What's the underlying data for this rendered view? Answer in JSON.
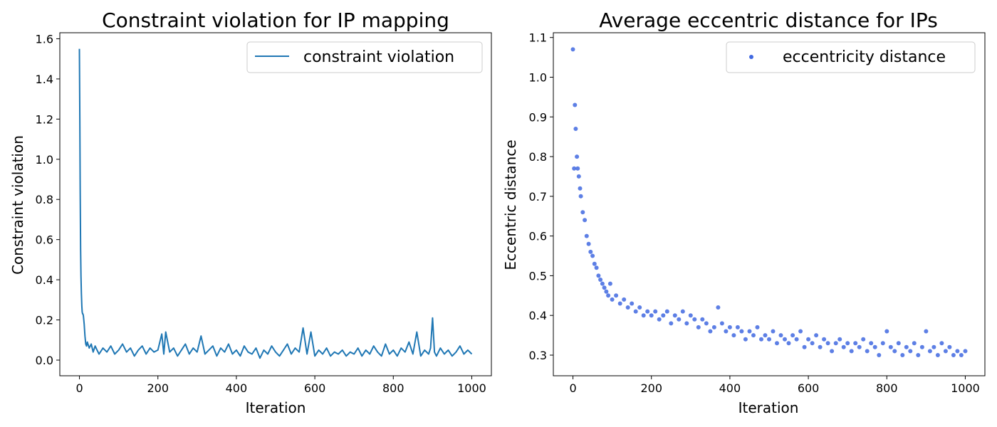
{
  "colors": {
    "line_series": "#1f77b4",
    "scatter_series": "#4169e1",
    "axes": "#000000",
    "legend_border": "#cccccc"
  },
  "chart_data": [
    {
      "type": "line",
      "title": "Constraint violation for IP mapping",
      "xlabel": "Iteration",
      "ylabel": "Constraint violation",
      "xlim": [
        -50,
        1050
      ],
      "ylim": [
        -0.078,
        1.63
      ],
      "xticks": [
        0,
        200,
        400,
        600,
        800,
        1000
      ],
      "yticks": [
        0.0,
        0.2,
        0.4,
        0.6,
        0.8,
        1.0,
        1.2,
        1.4,
        1.6
      ],
      "xtick_labels": [
        "0",
        "200",
        "400",
        "600",
        "800",
        "1000"
      ],
      "ytick_labels": [
        "0.0",
        "0.2",
        "0.4",
        "0.6",
        "0.8",
        "1.0",
        "1.2",
        "1.4",
        "1.6"
      ],
      "grid": false,
      "legend_position": "top-right",
      "series": [
        {
          "name": "constraint violation",
          "style": "line",
          "color": "#1f77b4",
          "x": [
            0,
            1,
            2,
            3,
            4,
            5,
            6,
            7,
            8,
            9,
            10,
            12,
            14,
            16,
            18,
            20,
            25,
            30,
            35,
            40,
            45,
            50,
            60,
            70,
            80,
            90,
            100,
            110,
            120,
            130,
            140,
            150,
            160,
            170,
            180,
            190,
            200,
            210,
            215,
            220,
            230,
            240,
            250,
            260,
            270,
            280,
            290,
            300,
            310,
            320,
            330,
            340,
            350,
            360,
            370,
            380,
            390,
            400,
            410,
            420,
            430,
            440,
            450,
            460,
            470,
            480,
            490,
            500,
            510,
            520,
            530,
            540,
            550,
            560,
            570,
            580,
            590,
            600,
            610,
            620,
            630,
            640,
            650,
            660,
            670,
            680,
            690,
            700,
            710,
            720,
            730,
            740,
            750,
            760,
            770,
            780,
            790,
            800,
            810,
            820,
            830,
            840,
            850,
            860,
            870,
            880,
            890,
            895,
            900,
            905,
            910,
            920,
            930,
            940,
            950,
            960,
            970,
            980,
            990,
            1000
          ],
          "y": [
            1.55,
            1.2,
            0.85,
            0.55,
            0.42,
            0.33,
            0.27,
            0.24,
            0.23,
            0.23,
            0.22,
            0.18,
            0.12,
            0.08,
            0.07,
            0.09,
            0.06,
            0.08,
            0.04,
            0.07,
            0.05,
            0.03,
            0.06,
            0.04,
            0.07,
            0.03,
            0.05,
            0.08,
            0.04,
            0.06,
            0.02,
            0.05,
            0.07,
            0.03,
            0.06,
            0.04,
            0.05,
            0.13,
            0.03,
            0.14,
            0.04,
            0.06,
            0.02,
            0.05,
            0.08,
            0.03,
            0.06,
            0.04,
            0.12,
            0.03,
            0.05,
            0.07,
            0.02,
            0.06,
            0.04,
            0.08,
            0.03,
            0.05,
            0.02,
            0.07,
            0.04,
            0.03,
            0.06,
            0.01,
            0.05,
            0.03,
            0.07,
            0.04,
            0.02,
            0.05,
            0.08,
            0.03,
            0.06,
            0.04,
            0.16,
            0.03,
            0.14,
            0.02,
            0.05,
            0.03,
            0.06,
            0.02,
            0.04,
            0.03,
            0.05,
            0.02,
            0.04,
            0.03,
            0.06,
            0.02,
            0.05,
            0.03,
            0.07,
            0.04,
            0.02,
            0.08,
            0.03,
            0.05,
            0.02,
            0.06,
            0.04,
            0.09,
            0.03,
            0.14,
            0.02,
            0.05,
            0.03,
            0.06,
            0.21,
            0.04,
            0.02,
            0.06,
            0.03,
            0.05,
            0.02,
            0.04,
            0.07,
            0.03,
            0.05,
            0.03
          ]
        }
      ]
    },
    {
      "type": "scatter",
      "title": "Average eccentric distance for IPs",
      "xlabel": "Iteration",
      "ylabel": "Eccentric distance",
      "xlim": [
        -50,
        1050
      ],
      "ylim": [
        0.248,
        1.112
      ],
      "xticks": [
        0,
        200,
        400,
        600,
        800,
        1000
      ],
      "yticks": [
        0.3,
        0.4,
        0.5,
        0.6,
        0.7,
        0.8,
        0.9,
        1.0,
        1.1
      ],
      "xtick_labels": [
        "0",
        "200",
        "400",
        "600",
        "800",
        "1000"
      ],
      "ytick_labels": [
        "0.3",
        "0.4",
        "0.5",
        "0.6",
        "0.7",
        "0.8",
        "0.9",
        "1.0",
        "1.1"
      ],
      "grid": false,
      "legend_position": "top-right",
      "series": [
        {
          "name": "eccentricity distance",
          "style": "scatter",
          "color": "#4169e1",
          "x": [
            0,
            3,
            5,
            7,
            10,
            12,
            15,
            18,
            20,
            25,
            30,
            35,
            40,
            45,
            50,
            55,
            60,
            65,
            70,
            75,
            80,
            85,
            90,
            95,
            100,
            110,
            120,
            130,
            140,
            150,
            160,
            170,
            180,
            190,
            200,
            210,
            220,
            230,
            240,
            250,
            260,
            270,
            280,
            290,
            300,
            310,
            320,
            330,
            340,
            350,
            360,
            370,
            380,
            390,
            400,
            410,
            420,
            430,
            440,
            450,
            460,
            470,
            480,
            490,
            500,
            510,
            520,
            530,
            540,
            550,
            560,
            570,
            580,
            590,
            600,
            610,
            620,
            630,
            640,
            650,
            660,
            670,
            680,
            690,
            700,
            710,
            720,
            730,
            740,
            750,
            760,
            770,
            780,
            790,
            800,
            810,
            820,
            830,
            840,
            850,
            860,
            870,
            880,
            890,
            900,
            910,
            920,
            930,
            940,
            950,
            960,
            970,
            980,
            990,
            1000
          ],
          "y": [
            1.07,
            0.77,
            0.93,
            0.87,
            0.8,
            0.77,
            0.75,
            0.72,
            0.7,
            0.66,
            0.64,
            0.6,
            0.58,
            0.56,
            0.55,
            0.53,
            0.52,
            0.5,
            0.49,
            0.48,
            0.47,
            0.46,
            0.45,
            0.48,
            0.44,
            0.45,
            0.43,
            0.44,
            0.42,
            0.43,
            0.41,
            0.42,
            0.4,
            0.41,
            0.4,
            0.41,
            0.39,
            0.4,
            0.41,
            0.38,
            0.4,
            0.39,
            0.41,
            0.38,
            0.4,
            0.39,
            0.37,
            0.39,
            0.38,
            0.36,
            0.37,
            0.42,
            0.38,
            0.36,
            0.37,
            0.35,
            0.37,
            0.36,
            0.34,
            0.36,
            0.35,
            0.37,
            0.34,
            0.35,
            0.34,
            0.36,
            0.33,
            0.35,
            0.34,
            0.33,
            0.35,
            0.34,
            0.36,
            0.32,
            0.34,
            0.33,
            0.35,
            0.32,
            0.34,
            0.33,
            0.31,
            0.33,
            0.34,
            0.32,
            0.33,
            0.31,
            0.33,
            0.32,
            0.34,
            0.31,
            0.33,
            0.32,
            0.3,
            0.33,
            0.36,
            0.32,
            0.31,
            0.33,
            0.3,
            0.32,
            0.31,
            0.33,
            0.3,
            0.32,
            0.36,
            0.31,
            0.32,
            0.3,
            0.33,
            0.31,
            0.32,
            0.3,
            0.31,
            0.3,
            0.31
          ]
        }
      ]
    }
  ]
}
